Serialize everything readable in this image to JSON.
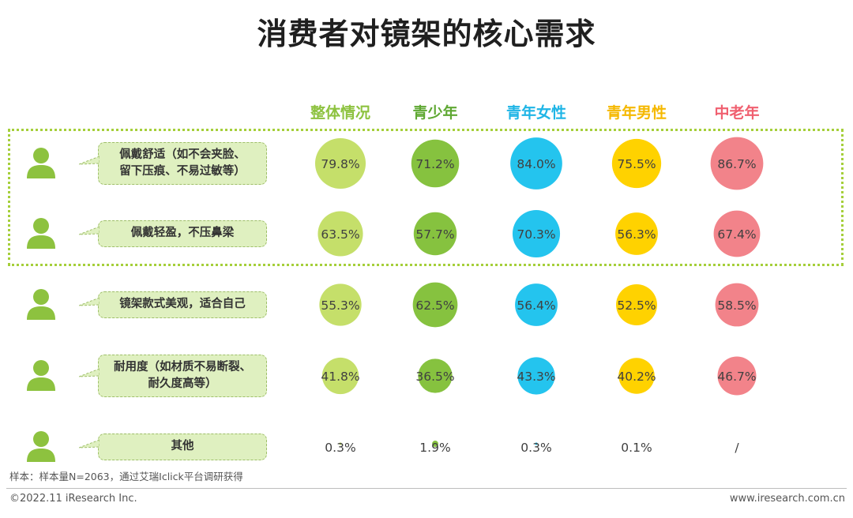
{
  "chart_data": {
    "type": "table",
    "title": "消费者对镜架的核心需求",
    "columns": [
      {
        "label": "整体情况",
        "color": "#8dc23f",
        "circle": "#c5df6a"
      },
      {
        "label": "青少年",
        "color": "#5fa833",
        "circle": "#86c23f"
      },
      {
        "label": "青年女性",
        "color": "#1fb5e6",
        "circle": "#24c4ee"
      },
      {
        "label": "青年男性",
        "color": "#f5b800",
        "circle": "#ffd200"
      },
      {
        "label": "中老年",
        "color": "#f06070",
        "circle": "#f2838a"
      }
    ],
    "rows": [
      {
        "label": "佩戴舒适（如不会夹脸、\n留下压痕、不易过敏等）",
        "values": [
          79.8,
          71.2,
          84.0,
          75.5,
          86.7
        ],
        "display": [
          "79.8%",
          "71.2%",
          "84.0%",
          "75.5%",
          "86.7%"
        ]
      },
      {
        "label": "佩戴轻盈，不压鼻梁",
        "values": [
          63.5,
          57.7,
          70.3,
          56.3,
          67.4
        ],
        "display": [
          "63.5%",
          "57.7%",
          "70.3%",
          "56.3%",
          "67.4%"
        ]
      },
      {
        "label": "镜架款式美观，适合自己",
        "values": [
          55.3,
          62.5,
          56.4,
          52.5,
          58.5
        ],
        "display": [
          "55.3%",
          "62.5%",
          "56.4%",
          "52.5%",
          "58.5%"
        ]
      },
      {
        "label": "耐用度（如材质不易断裂、\n耐久度高等）",
        "values": [
          41.8,
          36.5,
          43.3,
          40.2,
          46.7
        ],
        "display": [
          "41.8%",
          "36.5%",
          "43.3%",
          "40.2%",
          "46.7%"
        ]
      },
      {
        "label": "其他",
        "values": [
          0.3,
          1.9,
          0.3,
          0.1,
          null
        ],
        "display": [
          "0.3%",
          "1.9%",
          "0.3%",
          "0.1%",
          "/"
        ]
      }
    ],
    "highlighted_rows": [
      0,
      1
    ]
  },
  "note": "样本：样本量N=2063，通过艾瑞Iclick平台调研获得",
  "footer": {
    "copyright": "©2022.11 iResearch Inc.",
    "website": "www.iresearch.com.cn"
  },
  "colors": {
    "person_icon": "#8dc23f",
    "bubble_fill": "#dff0c0",
    "highlight_border": "#a5cf3a"
  }
}
